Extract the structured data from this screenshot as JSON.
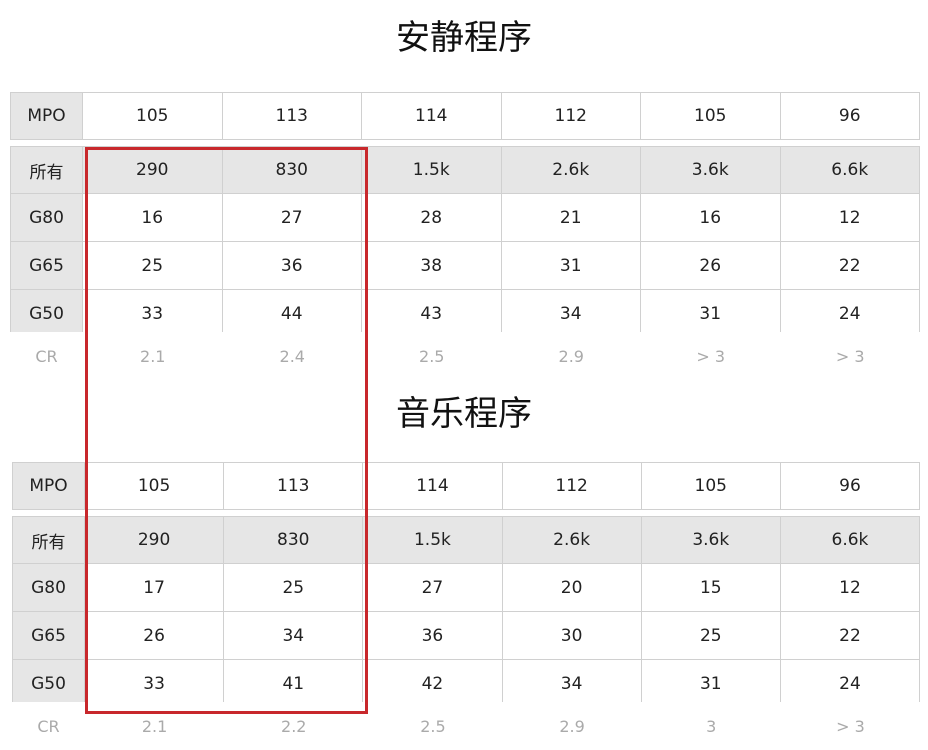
{
  "tables": [
    {
      "title": "安静程序",
      "mpo": {
        "label": "MPO",
        "values": [
          "105",
          "113",
          "114",
          "112",
          "105",
          "96"
        ]
      },
      "rows": [
        {
          "label": "所有",
          "values": [
            "290",
            "830",
            "1.5k",
            "2.6k",
            "3.6k",
            "6.6k"
          ]
        },
        {
          "label": "G80",
          "values": [
            "16",
            "27",
            "28",
            "21",
            "16",
            "12"
          ]
        },
        {
          "label": "G65",
          "values": [
            "25",
            "36",
            "38",
            "31",
            "26",
            "22"
          ]
        },
        {
          "label": "G50",
          "values": [
            "33",
            "44",
            "43",
            "34",
            "31",
            "24"
          ]
        }
      ],
      "cr": {
        "label": "CR",
        "values": [
          "2.1",
          "2.4",
          "2.5",
          "2.9",
          "> 3",
          "> 3"
        ]
      }
    },
    {
      "title": "音乐程序",
      "mpo": {
        "label": "MPO",
        "values": [
          "105",
          "113",
          "114",
          "112",
          "105",
          "96"
        ]
      },
      "rows": [
        {
          "label": "所有",
          "values": [
            "290",
            "830",
            "1.5k",
            "2.6k",
            "3.6k",
            "6.6k"
          ]
        },
        {
          "label": "G80",
          "values": [
            "17",
            "25",
            "27",
            "20",
            "15",
            "12"
          ]
        },
        {
          "label": "G65",
          "values": [
            "26",
            "34",
            "36",
            "30",
            "25",
            "22"
          ]
        },
        {
          "label": "G50",
          "values": [
            "33",
            "41",
            "42",
            "34",
            "31",
            "24"
          ]
        }
      ],
      "cr": {
        "label": "CR",
        "values": [
          "2.1",
          "2.2",
          "2.5",
          "2.9",
          "3",
          "> 3"
        ]
      }
    }
  ],
  "highlight_color": "#c8282c"
}
